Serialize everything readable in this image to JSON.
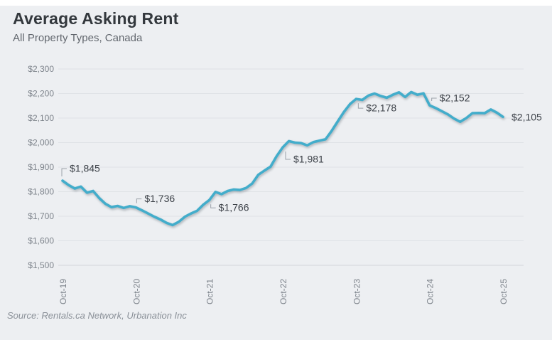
{
  "header": {
    "title": "Average Asking Rent",
    "subtitle": "All Property Types, Canada"
  },
  "footer": {
    "source": "Source: Rentals.ca Network, Urbanation Inc"
  },
  "colors": {
    "background": "#edeff2",
    "top_strip": "#ffffff",
    "line": "#43adcb",
    "grid": "#dfe2e6",
    "axis_text": "#7d838b",
    "annotation_text": "#3c4148",
    "leader": "#9aa0a8"
  },
  "chart_data": {
    "type": "line",
    "title": "Average Asking Rent",
    "subtitle": "All Property Types, Canada",
    "x_start": "Oct-19",
    "x_end": "Oct-25",
    "frequency": "monthly",
    "x_tick_labels": [
      "Oct-19",
      "Oct-20",
      "Oct-21",
      "Oct-22",
      "Oct-23",
      "Oct-24",
      "Oct-25"
    ],
    "y_tick_labels": [
      "$1,500",
      "$1,600",
      "$1,700",
      "$1,800",
      "$1,900",
      "$2,000",
      "$2,100",
      "$2,200",
      "$2,300"
    ],
    "ylim": [
      1500,
      2300
    ],
    "y_step": 100,
    "grid": "horizontal",
    "legend": "none",
    "series": [
      {
        "name": "Average Asking Rent",
        "values": [
          1845,
          1827,
          1813,
          1821,
          1796,
          1803,
          1774,
          1751,
          1737,
          1742,
          1734,
          1741,
          1736,
          1724,
          1711,
          1698,
          1687,
          1673,
          1664,
          1677,
          1698,
          1711,
          1722,
          1747,
          1766,
          1799,
          1790,
          1803,
          1809,
          1807,
          1815,
          1833,
          1869,
          1886,
          1902,
          1945,
          1981,
          2006,
          2000,
          1998,
          1989,
          2002,
          2008,
          2014,
          2048,
          2087,
          2125,
          2157,
          2178,
          2174,
          2192,
          2200,
          2190,
          2183,
          2195,
          2205,
          2186,
          2206,
          2195,
          2201,
          2152,
          2141,
          2128,
          2115,
          2098,
          2085,
          2100,
          2120,
          2121,
          2120,
          2135,
          2122,
          2105
        ]
      }
    ],
    "annotations": [
      {
        "label": "$1,845",
        "month": "Oct-19",
        "month_index": 0,
        "value": 1845
      },
      {
        "label": "$1,736",
        "month": "Oct-20",
        "month_index": 12,
        "value": 1736
      },
      {
        "label": "$1,766",
        "month": "Oct-21",
        "month_index": 24,
        "value": 1766
      },
      {
        "label": "$1,981",
        "month": "Oct-22",
        "month_index": 36,
        "value": 1981
      },
      {
        "label": "$2,178",
        "month": "Oct-23",
        "month_index": 48,
        "value": 2178
      },
      {
        "label": "$2,152",
        "month": "Oct-24",
        "month_index": 60,
        "value": 2152
      },
      {
        "label": "$2,105",
        "month": "Oct-25",
        "month_index": 72,
        "value": 2105
      }
    ]
  }
}
